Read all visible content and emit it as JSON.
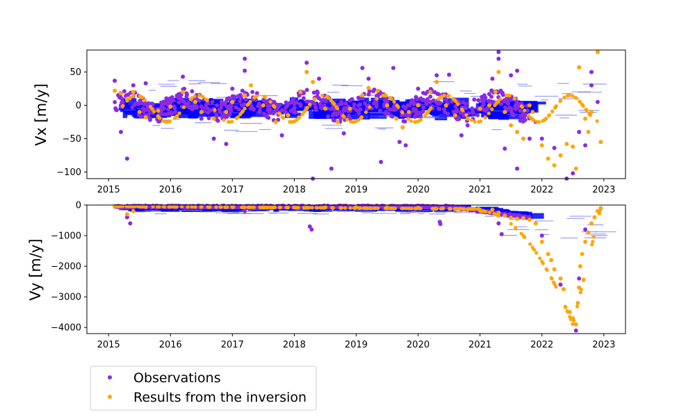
{
  "chart_data": [
    {
      "type": "scatter",
      "panel": "top",
      "ylabel": "Vx [m/y]",
      "xlim": [
        2014.65,
        2023.35
      ],
      "ylim": [
        -110,
        83
      ],
      "xticks": [
        2015,
        2016,
        2017,
        2018,
        2019,
        2020,
        2021,
        2022,
        2023
      ],
      "yticks": [
        50,
        0,
        -50,
        -100
      ],
      "grid": false,
      "series": [
        {
          "name": "Observations",
          "color": "#8a2be2",
          "points": [
            [
              2015.1,
              37
            ],
            [
              2015.2,
              -40
            ],
            [
              2015.3,
              -80
            ],
            [
              2015.4,
              30
            ],
            [
              2015.6,
              33
            ],
            [
              2015.8,
              -5
            ],
            [
              2016.2,
              43
            ],
            [
              2016.5,
              -20
            ],
            [
              2016.7,
              -50
            ],
            [
              2016.9,
              -58
            ],
            [
              2017.0,
              25
            ],
            [
              2017.2,
              70
            ],
            [
              2017.2,
              52
            ],
            [
              2017.6,
              -10
            ],
            [
              2017.8,
              -45
            ],
            [
              2018.2,
              64
            ],
            [
              2018.3,
              -110
            ],
            [
              2018.4,
              40
            ],
            [
              2018.6,
              -95
            ],
            [
              2018.8,
              -42
            ],
            [
              2019.1,
              56
            ],
            [
              2019.2,
              40
            ],
            [
              2019.4,
              -85
            ],
            [
              2019.5,
              5
            ],
            [
              2019.6,
              56
            ],
            [
              2019.7,
              -55
            ],
            [
              2019.8,
              -60
            ],
            [
              2020.0,
              25
            ],
            [
              2020.3,
              45
            ],
            [
              2020.5,
              46
            ],
            [
              2020.7,
              -45
            ],
            [
              2020.8,
              -30
            ],
            [
              2021.2,
              40
            ],
            [
              2021.3,
              80
            ],
            [
              2021.3,
              70
            ],
            [
              2021.4,
              -65
            ],
            [
              2021.5,
              45
            ],
            [
              2021.6,
              52
            ],
            [
              2021.6,
              -95
            ],
            [
              2021.8,
              -50
            ],
            [
              2021.9,
              -25
            ],
            [
              2022.0,
              -50
            ],
            [
              2022.2,
              -64
            ],
            [
              2022.4,
              -110
            ],
            [
              2022.5,
              -102
            ],
            [
              2022.6,
              -40
            ],
            [
              2022.7,
              -60
            ],
            [
              2022.8,
              50
            ],
            [
              2022.8,
              30
            ],
            [
              2022.9,
              5
            ]
          ]
        },
        {
          "name": "Results from the inversion",
          "color": "#ffa500",
          "points": [
            [
              2015.1,
              22
            ],
            [
              2015.2,
              18
            ],
            [
              2015.3,
              10
            ],
            [
              2015.4,
              20
            ],
            [
              2015.5,
              -10
            ],
            [
              2015.6,
              -18
            ],
            [
              2015.8,
              -8
            ],
            [
              2016.0,
              -2
            ],
            [
              2016.2,
              20
            ],
            [
              2016.4,
              5
            ],
            [
              2016.5,
              -10
            ],
            [
              2016.7,
              -20
            ],
            [
              2016.9,
              -10
            ],
            [
              2017.0,
              5
            ],
            [
              2017.2,
              15
            ],
            [
              2017.3,
              30
            ],
            [
              2017.5,
              0
            ],
            [
              2017.7,
              -25
            ],
            [
              2017.9,
              -15
            ],
            [
              2018.1,
              20
            ],
            [
              2018.2,
              50
            ],
            [
              2018.3,
              35
            ],
            [
              2018.5,
              -5
            ],
            [
              2018.7,
              -25
            ],
            [
              2018.9,
              -5
            ],
            [
              2019.1,
              15
            ],
            [
              2019.2,
              26
            ],
            [
              2019.35,
              22
            ],
            [
              2019.5,
              0
            ],
            [
              2019.65,
              -20
            ],
            [
              2019.75,
              -33
            ],
            [
              2019.85,
              -10
            ],
            [
              2020.0,
              0
            ],
            [
              2020.2,
              20
            ],
            [
              2020.3,
              35
            ],
            [
              2020.45,
              0
            ],
            [
              2020.6,
              -15
            ],
            [
              2020.8,
              -20
            ],
            [
              2021.0,
              -5
            ],
            [
              2021.15,
              0
            ],
            [
              2021.25,
              20
            ],
            [
              2021.3,
              50
            ],
            [
              2021.4,
              -10
            ],
            [
              2021.5,
              -30
            ],
            [
              2021.6,
              -40
            ],
            [
              2021.7,
              -50
            ],
            [
              2021.8,
              0
            ],
            [
              2021.85,
              -10
            ],
            [
              2022.0,
              -60
            ],
            [
              2022.1,
              -80
            ],
            [
              2022.2,
              -90
            ],
            [
              2022.3,
              -75
            ],
            [
              2022.4,
              -58
            ],
            [
              2022.5,
              -62
            ],
            [
              2022.55,
              -95
            ],
            [
              2022.6,
              57
            ],
            [
              2022.7,
              -20
            ],
            [
              2022.75,
              -40
            ],
            [
              2022.8,
              -10
            ],
            [
              2022.9,
              80
            ],
            [
              2022.95,
              -55
            ]
          ]
        }
      ]
    },
    {
      "type": "scatter",
      "panel": "bottom",
      "ylabel": "Vy [m/y]",
      "xlim": [
        2014.65,
        2023.35
      ],
      "ylim": [
        -4200,
        0
      ],
      "xticks": [
        2015,
        2016,
        2017,
        2018,
        2019,
        2020,
        2021,
        2022,
        2023
      ],
      "yticks": [
        0,
        -1000,
        -2000,
        -3000,
        -4000
      ],
      "grid": false,
      "series": [
        {
          "name": "Observations",
          "color": "#8a2be2",
          "points": [
            [
              2015.2,
              -100
            ],
            [
              2015.3,
              -400
            ],
            [
              2015.35,
              -600
            ],
            [
              2015.5,
              -50
            ],
            [
              2016.0,
              -60
            ],
            [
              2016.5,
              -70
            ],
            [
              2017.0,
              -80
            ],
            [
              2017.2,
              -200
            ],
            [
              2017.5,
              -60
            ],
            [
              2018.0,
              -70
            ],
            [
              2018.25,
              -700
            ],
            [
              2018.28,
              -800
            ],
            [
              2018.5,
              -80
            ],
            [
              2019.0,
              -90
            ],
            [
              2019.5,
              -120
            ],
            [
              2020.0,
              -100
            ],
            [
              2020.35,
              -550
            ],
            [
              2020.36,
              -620
            ],
            [
              2020.7,
              -150
            ],
            [
              2021.0,
              -200
            ],
            [
              2021.3,
              -600
            ],
            [
              2021.35,
              -950
            ],
            [
              2021.5,
              -350
            ],
            [
              2021.8,
              -450
            ],
            [
              2022.0,
              -1000
            ],
            [
              2022.3,
              -2600
            ],
            [
              2022.55,
              -4100
            ],
            [
              2022.6,
              -2400
            ],
            [
              2022.7,
              -800
            ]
          ]
        },
        {
          "name": "Results from the inversion",
          "color": "#ffa500",
          "points": [
            [
              2015.1,
              -30
            ],
            [
              2015.3,
              -300
            ],
            [
              2015.4,
              -200
            ],
            [
              2015.6,
              -60
            ],
            [
              2016.0,
              -50
            ],
            [
              2016.5,
              -50
            ],
            [
              2017.0,
              -60
            ],
            [
              2017.5,
              -70
            ],
            [
              2018.0,
              -80
            ],
            [
              2018.5,
              -70
            ],
            [
              2019.0,
              -70
            ],
            [
              2019.5,
              -80
            ],
            [
              2020.0,
              -90
            ],
            [
              2020.4,
              -110
            ],
            [
              2020.6,
              -130
            ],
            [
              2020.8,
              -140
            ],
            [
              2021.0,
              -160
            ],
            [
              2021.2,
              -150
            ],
            [
              2021.3,
              -250
            ],
            [
              2021.4,
              -350
            ],
            [
              2021.5,
              -420
            ],
            [
              2021.6,
              -450
            ],
            [
              2021.7,
              -430
            ],
            [
              2021.8,
              -480
            ],
            [
              2021.9,
              -600
            ],
            [
              2022.0,
              -1200
            ],
            [
              2022.1,
              -1600
            ],
            [
              2022.15,
              -1800
            ],
            [
              2022.2,
              -2100
            ],
            [
              2022.3,
              -2400
            ],
            [
              2022.35,
              -2750
            ],
            [
              2022.45,
              -3500
            ],
            [
              2022.5,
              -3700
            ],
            [
              2022.55,
              -3900
            ],
            [
              2022.58,
              -3200
            ],
            [
              2022.6,
              -2700
            ],
            [
              2022.62,
              -2000
            ],
            [
              2022.65,
              -1600
            ],
            [
              2022.7,
              -1200
            ],
            [
              2022.75,
              -900
            ],
            [
              2022.8,
              -600
            ],
            [
              2022.85,
              -400
            ],
            [
              2022.9,
              -200
            ],
            [
              2022.95,
              -100
            ]
          ]
        }
      ]
    }
  ],
  "legend": {
    "placement": "bottom-left",
    "entries": [
      {
        "label": "Observations",
        "color": "#8a2be2"
      },
      {
        "label": "Results from the inversion",
        "color": "#ffa500"
      }
    ]
  }
}
